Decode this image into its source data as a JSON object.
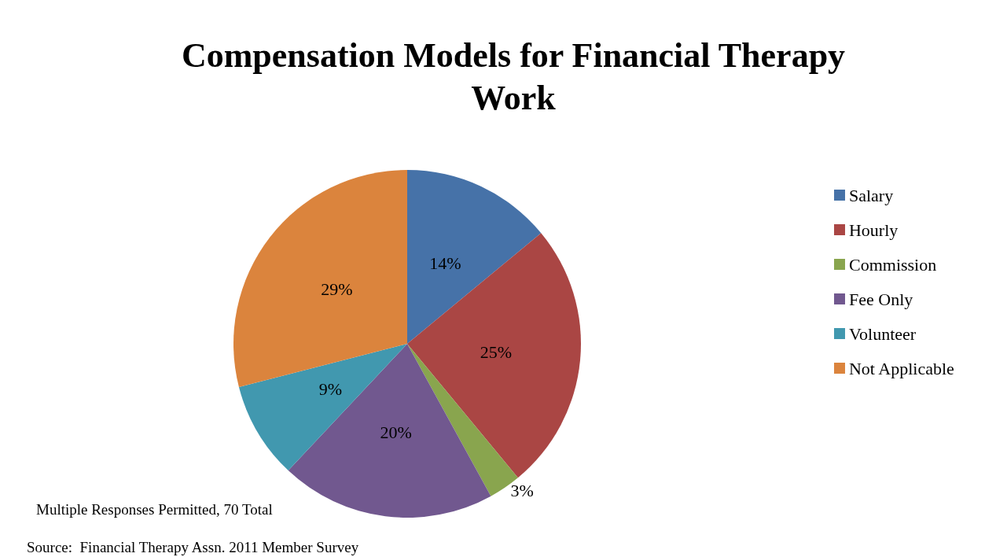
{
  "chart_data": {
    "type": "pie",
    "title": "Compensation Models for Financial Therapy\nWork",
    "categories": [
      "Salary",
      "Hourly",
      "Commission",
      "Fee Only",
      "Volunteer",
      "Not Applicable"
    ],
    "values": [
      14,
      25,
      3,
      20,
      9,
      29
    ],
    "colors": [
      "#4672a8",
      "#aa4644",
      "#89a54e",
      "#71588f",
      "#4198af",
      "#db843d"
    ],
    "value_labels": [
      "14%",
      "25%",
      "3%",
      "20%",
      "9%",
      "29%"
    ],
    "legend": "right",
    "annotations": [
      "Multiple Responses Permitted, 70 Total",
      "Source:  Financial Therapy Assn. 2011 Member Survey"
    ]
  }
}
